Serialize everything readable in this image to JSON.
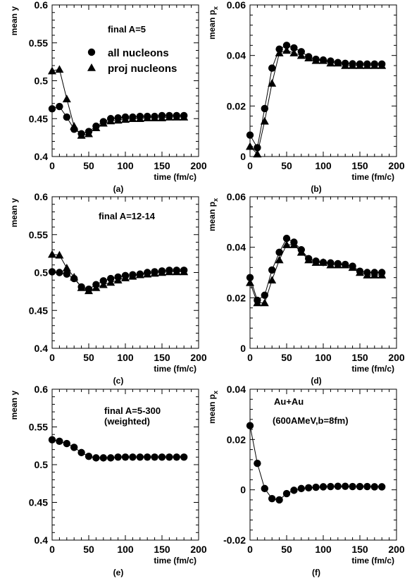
{
  "chart_data": [
    {
      "type": "line",
      "panel_label": "(a)",
      "xlabel": "time (fm/c)",
      "ylabel": "mean y",
      "xlim": [
        0,
        200
      ],
      "ylim": [
        0.4,
        0.6
      ],
      "xticks": [
        "0",
        "50",
        "100",
        "150",
        "200"
      ],
      "yticks": [
        "0.4",
        "0.45",
        "0.5",
        "0.55",
        "0.6"
      ],
      "annotations": [
        "final A=5"
      ],
      "legend": {
        "placement": "top-center",
        "entries": [
          {
            "marker": "circle",
            "label": "all nucleons"
          },
          {
            "marker": "triangle",
            "label": "proj nucleons"
          }
        ]
      },
      "x": [
        0,
        10,
        20,
        30,
        40,
        50,
        60,
        70,
        80,
        90,
        100,
        110,
        120,
        130,
        140,
        150,
        160,
        170,
        180
      ],
      "series": [
        {
          "marker": "triangle",
          "values": [
            0.513,
            0.515,
            0.476,
            0.44,
            0.428,
            0.43,
            0.438,
            0.444,
            0.447,
            0.448,
            0.449,
            0.45,
            0.45,
            0.451,
            0.451,
            0.451,
            0.452,
            0.452,
            0.452
          ]
        },
        {
          "marker": "circle",
          "values": [
            0.463,
            0.466,
            0.452,
            0.436,
            0.43,
            0.433,
            0.44,
            0.446,
            0.45,
            0.451,
            0.452,
            0.452,
            0.453,
            0.453,
            0.453,
            0.454,
            0.454,
            0.454,
            0.454
          ]
        }
      ]
    },
    {
      "type": "line",
      "panel_label": "(b)",
      "xlabel": "time (fm/c)",
      "ylabel": "mean p",
      "ylabel_sub": "x",
      "xlim": [
        0,
        200
      ],
      "ylim": [
        0,
        0.06
      ],
      "xticks": [
        "0",
        "50",
        "100",
        "150",
        "200"
      ],
      "yticks": [
        "0",
        "0.02",
        "0.04",
        "0.06"
      ],
      "x": [
        0,
        10,
        20,
        30,
        40,
        50,
        60,
        70,
        80,
        90,
        100,
        110,
        120,
        130,
        140,
        150,
        160,
        170,
        180
      ],
      "series": [
        {
          "marker": "triangle",
          "values": [
            0.004,
            0.001,
            0.014,
            0.029,
            0.041,
            0.042,
            0.041,
            0.04,
            0.039,
            0.038,
            0.038,
            0.037,
            0.037,
            0.036,
            0.036,
            0.036,
            0.036,
            0.036,
            0.036
          ]
        },
        {
          "marker": "circle",
          "values": [
            0.0085,
            0.0035,
            0.019,
            0.035,
            0.0425,
            0.044,
            0.043,
            0.0415,
            0.0395,
            0.0385,
            0.0382,
            0.0378,
            0.0372,
            0.0369,
            0.0367,
            0.0366,
            0.0366,
            0.0366,
            0.0366
          ]
        }
      ]
    },
    {
      "type": "line",
      "panel_label": "(c)",
      "xlabel": "time (fm/c)",
      "ylabel": "mean y",
      "xlim": [
        0,
        200
      ],
      "ylim": [
        0.4,
        0.6
      ],
      "xticks": [
        "0",
        "50",
        "100",
        "150",
        "200"
      ],
      "yticks": [
        "0.4",
        "0.45",
        "0.5",
        "0.55",
        "0.6"
      ],
      "annotations": [
        "final A=12-14"
      ],
      "x": [
        0,
        10,
        20,
        30,
        40,
        50,
        60,
        70,
        80,
        90,
        100,
        110,
        120,
        130,
        140,
        150,
        160,
        170,
        180
      ],
      "series": [
        {
          "marker": "triangle",
          "values": [
            0.524,
            0.523,
            0.506,
            0.494,
            0.48,
            0.476,
            0.48,
            0.484,
            0.487,
            0.49,
            0.493,
            0.495,
            0.497,
            0.498,
            0.499,
            0.5,
            0.501,
            0.501,
            0.501
          ]
        },
        {
          "marker": "circle",
          "values": [
            0.501,
            0.5,
            0.498,
            0.492,
            0.481,
            0.478,
            0.484,
            0.489,
            0.492,
            0.494,
            0.496,
            0.497,
            0.498,
            0.5,
            0.501,
            0.502,
            0.503,
            0.503,
            0.503
          ]
        }
      ]
    },
    {
      "type": "line",
      "panel_label": "(d)",
      "xlabel": "time (fm/c)",
      "ylabel": "mean p",
      "ylabel_sub": "x",
      "xlim": [
        0,
        200
      ],
      "ylim": [
        0,
        0.06
      ],
      "xticks": [
        "0",
        "50",
        "100",
        "150",
        "200"
      ],
      "yticks": [
        "0",
        "0.02",
        "0.04",
        "0.06"
      ],
      "x": [
        0,
        10,
        20,
        30,
        40,
        50,
        60,
        70,
        80,
        90,
        100,
        110,
        120,
        130,
        140,
        150,
        160,
        170,
        180
      ],
      "series": [
        {
          "marker": "triangle",
          "values": [
            0.026,
            0.018,
            0.018,
            0.027,
            0.035,
            0.041,
            0.041,
            0.038,
            0.035,
            0.034,
            0.034,
            0.033,
            0.033,
            0.033,
            0.032,
            0.03,
            0.029,
            0.029,
            0.029
          ]
        },
        {
          "marker": "circle",
          "values": [
            0.028,
            0.019,
            0.021,
            0.031,
            0.038,
            0.0435,
            0.042,
            0.039,
            0.0355,
            0.0345,
            0.034,
            0.0338,
            0.0335,
            0.0332,
            0.0325,
            0.0305,
            0.03,
            0.03,
            0.03
          ]
        }
      ]
    },
    {
      "type": "line",
      "panel_label": "(e)",
      "xlabel": "time (fm/c)",
      "ylabel": "mean y",
      "xlim": [
        0,
        200
      ],
      "ylim": [
        0.4,
        0.6
      ],
      "xticks": [
        "0",
        "50",
        "100",
        "150",
        "200"
      ],
      "yticks": [
        "0.4",
        "0.45",
        "0.5",
        "0.55",
        "0.6"
      ],
      "annotations": [
        "final A=5-300",
        "(weighted)"
      ],
      "x": [
        0,
        10,
        20,
        30,
        40,
        50,
        60,
        70,
        80,
        90,
        100,
        110,
        120,
        130,
        140,
        150,
        160,
        170,
        180
      ],
      "series": [
        {
          "marker": "circle",
          "values": [
            0.533,
            0.531,
            0.528,
            0.523,
            0.516,
            0.511,
            0.509,
            0.509,
            0.509,
            0.51,
            0.51,
            0.51,
            0.51,
            0.51,
            0.51,
            0.51,
            0.51,
            0.51,
            0.51
          ]
        }
      ]
    },
    {
      "type": "line",
      "panel_label": "(f)",
      "xlabel": "time (fm/c)",
      "ylabel": "mean p",
      "ylabel_sub": "x",
      "xlim": [
        0,
        200
      ],
      "ylim": [
        -0.02,
        0.04
      ],
      "xticks": [
        "0",
        "50",
        "100",
        "150",
        "200"
      ],
      "yticks": [
        "-0.02",
        "0",
        "0.02",
        "0.04"
      ],
      "annotations": [
        "Au+Au",
        "(600AMeV,b=8fm)"
      ],
      "x": [
        0,
        10,
        20,
        30,
        40,
        50,
        60,
        70,
        80,
        90,
        100,
        110,
        120,
        130,
        140,
        150,
        160,
        170,
        180
      ],
      "series": [
        {
          "marker": "circle",
          "values": [
            0.0255,
            0.0105,
            0.0005,
            -0.0035,
            -0.004,
            -0.0015,
            -0.0002,
            0.0005,
            0.0008,
            0.001,
            0.0012,
            0.0013,
            0.0014,
            0.0014,
            0.0013,
            0.0013,
            0.0013,
            0.0012,
            0.0012
          ]
        }
      ]
    }
  ]
}
